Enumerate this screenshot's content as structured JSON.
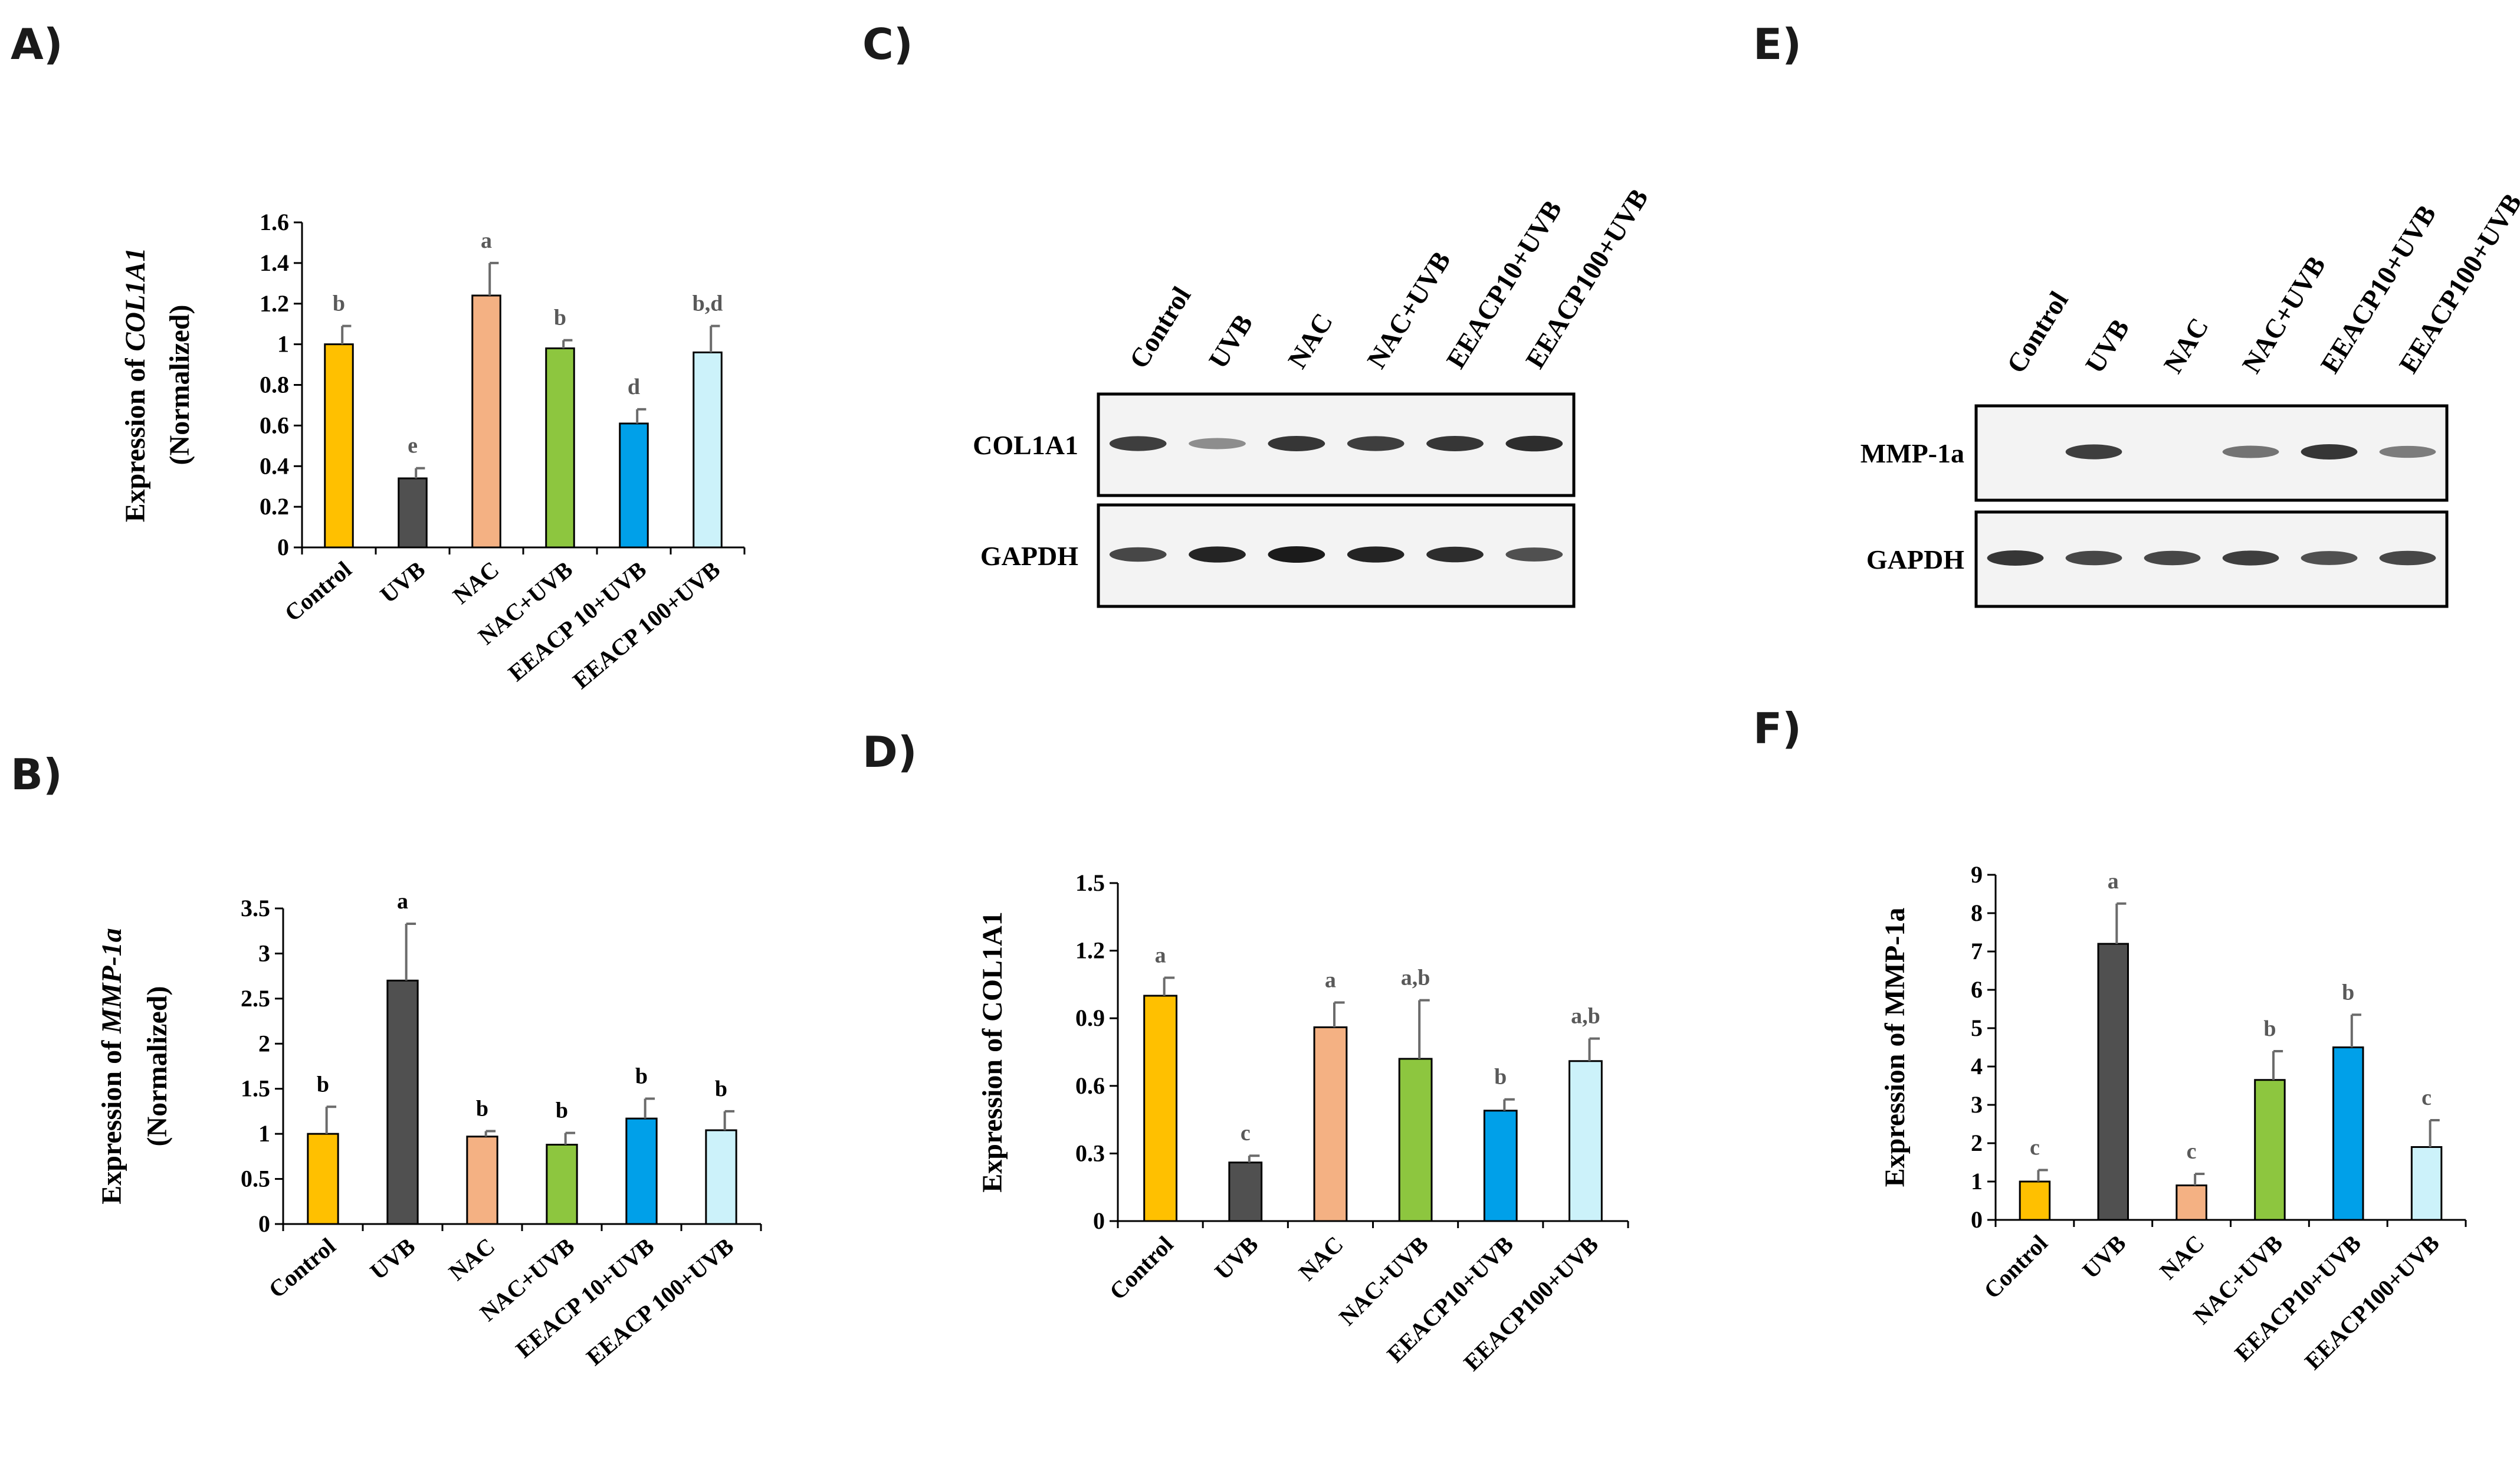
{
  "panel_labels": {
    "A": "A)",
    "B": "B)",
    "C": "C)",
    "D": "D)",
    "E": "E)",
    "F": "F)"
  },
  "colors": {
    "control": "#FFC000",
    "uvb": "#505050",
    "nac": "#F4B183",
    "nac_uvb": "#8DC63F",
    "eeacp10": "#00A0E9",
    "eeacp100": "#CCF2FA",
    "sig_gray": "#595959",
    "sig_black": "#000000"
  },
  "chart_data": [
    {
      "id": "A",
      "type": "bar",
      "ylabel_prefix": "Expression of ",
      "ylabel_italic": "COL1A1",
      "ylabel_line2": "(Normalized)",
      "ylim": [
        0,
        1.6
      ],
      "yticks": [
        "0",
        "0.2",
        "0.4",
        "0.6",
        "0.8",
        "1",
        "1.2",
        "1.4",
        "1.6"
      ],
      "categories": [
        "Control",
        "UVB",
        "NAC",
        "NAC+UVB",
        "EEACP 10+UVB",
        "EEACP 100+UVB"
      ],
      "values": [
        1.0,
        0.34,
        1.24,
        0.98,
        0.61,
        0.96
      ],
      "errors": [
        0.09,
        0.05,
        0.16,
        0.04,
        0.07,
        0.13
      ],
      "letters": [
        "b",
        "e",
        "a",
        "b",
        "d",
        "b,d"
      ]
    },
    {
      "id": "B",
      "type": "bar",
      "ylabel_prefix": "Expression of ",
      "ylabel_italic": "MMP-1a",
      "ylabel_line2": "(Normalized)",
      "ylim": [
        0,
        3.5
      ],
      "yticks": [
        "0",
        "0.5",
        "1",
        "1.5",
        "2",
        "2.5",
        "3",
        "3.5"
      ],
      "categories": [
        "Control",
        "UVB",
        "NAC",
        "NAC+UVB",
        "EEACP 10+UVB",
        "EEACP 100+UVB"
      ],
      "values": [
        1.0,
        2.7,
        0.97,
        0.88,
        1.17,
        1.04
      ],
      "errors": [
        0.3,
        0.63,
        0.06,
        0.13,
        0.22,
        0.21
      ],
      "letters": [
        "b",
        "a",
        "b",
        "b",
        "b",
        "b"
      ]
    },
    {
      "id": "D",
      "type": "bar",
      "ylabel": "Expression of COL1A1",
      "ylim": [
        0,
        1.5
      ],
      "yticks": [
        "0",
        "0.3",
        "0.6",
        "0.9",
        "1.2",
        "1.5"
      ],
      "categories": [
        "Control",
        "UVB",
        "NAC",
        "NAC+UVB",
        "EEACP10+UVB",
        "EEACP100+UVB"
      ],
      "values": [
        1.0,
        0.26,
        0.86,
        0.72,
        0.49,
        0.71
      ],
      "errors": [
        0.08,
        0.03,
        0.11,
        0.26,
        0.05,
        0.1
      ],
      "letters": [
        "a",
        "c",
        "a",
        "a,b",
        "b",
        "a,b"
      ]
    },
    {
      "id": "F",
      "type": "bar",
      "ylabel": "Expression of MMP-1a",
      "ylim": [
        0,
        9
      ],
      "yticks": [
        "0",
        "1",
        "2",
        "3",
        "4",
        "5",
        "6",
        "7",
        "8",
        "9"
      ],
      "categories": [
        "Control",
        "UVB",
        "NAC",
        "NAC+UVB",
        "EEACP10+UVB",
        "EEACP100+UVB"
      ],
      "values": [
        1.0,
        7.2,
        0.9,
        3.65,
        4.5,
        1.9
      ],
      "errors": [
        0.3,
        1.05,
        0.3,
        0.75,
        0.85,
        0.7
      ],
      "letters": [
        "c",
        "a",
        "c",
        "b",
        "b",
        "c"
      ]
    }
  ],
  "blot_C": {
    "lanes": [
      "Control",
      "UVB",
      "NAC",
      "NAC+UVB",
      "EEACP10+UVB",
      "EEACP100+UVB"
    ],
    "rows": [
      {
        "label": "COL1A1",
        "intensity": [
          0.8,
          0.35,
          0.85,
          0.8,
          0.85,
          0.9
        ]
      },
      {
        "label": "GAPDH",
        "intensity": [
          0.75,
          0.95,
          1.0,
          0.95,
          0.9,
          0.7
        ]
      }
    ]
  },
  "blot_E": {
    "lanes": [
      "Control",
      "UVB",
      "NAC",
      "NAC+UVB",
      "EEACP10+UVB",
      "EEACP100+UVB"
    ],
    "rows": [
      {
        "label": "MMP-1a",
        "intensity": [
          0.0,
          0.8,
          0.0,
          0.5,
          0.85,
          0.45
        ]
      },
      {
        "label": "GAPDH",
        "intensity": [
          0.85,
          0.75,
          0.75,
          0.8,
          0.7,
          0.75
        ]
      }
    ]
  }
}
